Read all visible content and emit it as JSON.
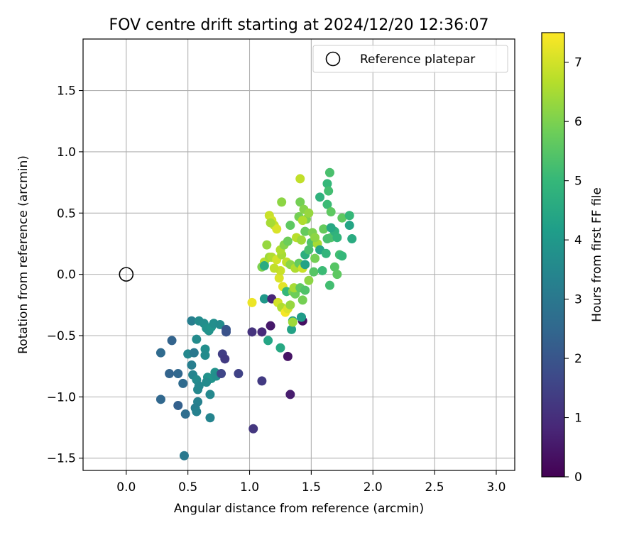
{
  "chart_data": {
    "type": "scatter",
    "title": "FOV centre drift starting at 2024/12/20 12:36:07",
    "xlabel": "Angular distance from reference (arcmin)",
    "ylabel": "Rotation from reference (arcmin)",
    "xlim": [
      -0.35,
      3.15
    ],
    "ylim": [
      -1.6,
      1.92
    ],
    "xticks": [
      0.0,
      0.5,
      1.0,
      1.5,
      2.0,
      2.5,
      3.0
    ],
    "xtick_labels": [
      "0.0",
      "0.5",
      "1.0",
      "1.5",
      "2.0",
      "2.5",
      "3.0"
    ],
    "yticks": [
      -1.5,
      -1.0,
      -0.5,
      0.0,
      0.5,
      1.0,
      1.5
    ],
    "ytick_labels": [
      "−1.5",
      "−1.0",
      "−0.5",
      "0.0",
      "0.5",
      "1.0",
      "1.5"
    ],
    "grid": true,
    "legend": {
      "placement": "top-right",
      "entries": [
        "Reference platepar"
      ]
    },
    "reference_point": {
      "x": 0.0,
      "y": 0.0
    },
    "colorbar": {
      "label": "Hours from first FF file",
      "range": [
        0,
        7.5
      ],
      "ticks": [
        0,
        1,
        2,
        3,
        4,
        5,
        6,
        7
      ],
      "tick_labels": [
        "0",
        "1",
        "2",
        "3",
        "4",
        "5",
        "6",
        "7"
      ],
      "colormap": "viridis",
      "colormap_stops": [
        "#440154",
        "#482878",
        "#3e4989",
        "#31688e",
        "#26828e",
        "#1f9e89",
        "#35b779",
        "#6ece58",
        "#b5de2b",
        "#fde725"
      ]
    },
    "points": [
      {
        "x": 0.47,
        "y": -1.48,
        "t": 3.0
      },
      {
        "x": 0.28,
        "y": -1.02,
        "t": 2.5
      },
      {
        "x": 0.28,
        "y": -0.64,
        "t": 2.6
      },
      {
        "x": 0.37,
        "y": -0.54,
        "t": 2.4
      },
      {
        "x": 0.35,
        "y": -0.81,
        "t": 2.4
      },
      {
        "x": 0.42,
        "y": -0.81,
        "t": 2.5
      },
      {
        "x": 0.46,
        "y": -0.89,
        "t": 2.6
      },
      {
        "x": 0.42,
        "y": -1.07,
        "t": 2.3
      },
      {
        "x": 0.48,
        "y": -1.14,
        "t": 2.7
      },
      {
        "x": 0.53,
        "y": -0.38,
        "t": 3.2
      },
      {
        "x": 0.57,
        "y": -0.53,
        "t": 3.6
      },
      {
        "x": 0.5,
        "y": -0.65,
        "t": 3.5
      },
      {
        "x": 0.55,
        "y": -0.64,
        "t": 3.0
      },
      {
        "x": 0.53,
        "y": -0.74,
        "t": 3.2
      },
      {
        "x": 0.54,
        "y": -0.82,
        "t": 3.4
      },
      {
        "x": 0.57,
        "y": -0.86,
        "t": 3.6
      },
      {
        "x": 0.59,
        "y": -0.91,
        "t": 3.5
      },
      {
        "x": 0.58,
        "y": -0.94,
        "t": 3.5
      },
      {
        "x": 0.58,
        "y": -1.04,
        "t": 3.3
      },
      {
        "x": 0.56,
        "y": -1.09,
        "t": 3.2
      },
      {
        "x": 0.57,
        "y": -1.12,
        "t": 3.3
      },
      {
        "x": 0.59,
        "y": -0.38,
        "t": 3.6
      },
      {
        "x": 0.63,
        "y": -0.4,
        "t": 3.7
      },
      {
        "x": 0.65,
        "y": -0.44,
        "t": 3.8
      },
      {
        "x": 0.67,
        "y": -0.46,
        "t": 3.8
      },
      {
        "x": 0.69,
        "y": -0.43,
        "t": 3.9
      },
      {
        "x": 0.71,
        "y": -0.4,
        "t": 3.7
      },
      {
        "x": 0.76,
        "y": -0.41,
        "t": 3.6
      },
      {
        "x": 0.64,
        "y": -0.61,
        "t": 3.7
      },
      {
        "x": 0.64,
        "y": -0.66,
        "t": 3.6
      },
      {
        "x": 0.66,
        "y": -0.84,
        "t": 3.8
      },
      {
        "x": 0.69,
        "y": -0.85,
        "t": 3.9
      },
      {
        "x": 0.72,
        "y": -0.8,
        "t": 3.8
      },
      {
        "x": 0.73,
        "y": -0.83,
        "t": 3.7
      },
      {
        "x": 0.65,
        "y": -0.88,
        "t": 3.6
      },
      {
        "x": 0.68,
        "y": -0.98,
        "t": 3.5
      },
      {
        "x": 0.68,
        "y": -1.17,
        "t": 3.4
      },
      {
        "x": 0.81,
        "y": -0.45,
        "t": 2.0
      },
      {
        "x": 0.81,
        "y": -0.47,
        "t": 1.9
      },
      {
        "x": 0.78,
        "y": -0.65,
        "t": 1.4
      },
      {
        "x": 0.8,
        "y": -0.69,
        "t": 1.3
      },
      {
        "x": 0.77,
        "y": -0.81,
        "t": 1.6
      },
      {
        "x": 0.91,
        "y": -0.81,
        "t": 1.5
      },
      {
        "x": 1.02,
        "y": -0.47,
        "t": 1.1
      },
      {
        "x": 1.03,
        "y": -1.26,
        "t": 1.2
      },
      {
        "x": 1.1,
        "y": -0.47,
        "t": 0.9
      },
      {
        "x": 1.1,
        "y": -0.87,
        "t": 1.3
      },
      {
        "x": 1.17,
        "y": -0.42,
        "t": 0.5
      },
      {
        "x": 1.31,
        "y": -0.67,
        "t": 0.4
      },
      {
        "x": 1.33,
        "y": -0.98,
        "t": 0.6
      },
      {
        "x": 1.15,
        "y": -0.54,
        "t": 4.4
      },
      {
        "x": 1.25,
        "y": -0.6,
        "t": 4.5
      },
      {
        "x": 1.34,
        "y": -0.45,
        "t": 4.3
      },
      {
        "x": 1.35,
        "y": -0.38,
        "t": 4.2
      },
      {
        "x": 1.43,
        "y": -0.38,
        "t": 0.3
      },
      {
        "x": 1.42,
        "y": -0.35,
        "t": 2.0
      },
      {
        "x": 1.42,
        "y": -0.35,
        "t": 4.1
      },
      {
        "x": 1.12,
        "y": -0.2,
        "t": 4.0
      },
      {
        "x": 1.18,
        "y": -0.2,
        "t": 0.8
      },
      {
        "x": 1.02,
        "y": -0.23,
        "t": 7.3
      },
      {
        "x": 1.23,
        "y": -0.23,
        "t": 7.0
      },
      {
        "x": 1.26,
        "y": -0.27,
        "t": 6.6
      },
      {
        "x": 1.29,
        "y": -0.31,
        "t": 7.4
      },
      {
        "x": 1.31,
        "y": -0.28,
        "t": 7.1
      },
      {
        "x": 1.33,
        "y": -0.25,
        "t": 6.3
      },
      {
        "x": 1.35,
        "y": -0.39,
        "t": 6.4
      },
      {
        "x": 1.27,
        "y": -0.1,
        "t": 7.2
      },
      {
        "x": 1.3,
        "y": -0.14,
        "t": 5.0
      },
      {
        "x": 1.35,
        "y": -0.14,
        "t": 6.0
      },
      {
        "x": 1.37,
        "y": -0.16,
        "t": 5.8
      },
      {
        "x": 1.36,
        "y": -0.11,
        "t": 6.5
      },
      {
        "x": 1.41,
        "y": -0.11,
        "t": 5.6
      },
      {
        "x": 1.43,
        "y": -0.21,
        "t": 5.9
      },
      {
        "x": 1.45,
        "y": -0.13,
        "t": 5.4
      },
      {
        "x": 1.48,
        "y": -0.05,
        "t": 6.2
      },
      {
        "x": 1.52,
        "y": 0.02,
        "t": 5.5
      },
      {
        "x": 1.24,
        "y": -0.03,
        "t": 7.1
      },
      {
        "x": 1.25,
        "y": 0.03,
        "t": 6.9
      },
      {
        "x": 1.2,
        "y": 0.05,
        "t": 6.8
      },
      {
        "x": 1.1,
        "y": 0.06,
        "t": 6.0
      },
      {
        "x": 1.12,
        "y": 0.1,
        "t": 6.7
      },
      {
        "x": 1.16,
        "y": 0.14,
        "t": 6.4
      },
      {
        "x": 1.18,
        "y": 0.14,
        "t": 6.6
      },
      {
        "x": 1.22,
        "y": 0.12,
        "t": 7.0
      },
      {
        "x": 1.26,
        "y": 0.16,
        "t": 6.5
      },
      {
        "x": 1.3,
        "y": 0.1,
        "t": 6.8
      },
      {
        "x": 1.33,
        "y": 0.08,
        "t": 6.2
      },
      {
        "x": 1.37,
        "y": 0.05,
        "t": 6.6
      },
      {
        "x": 1.4,
        "y": 0.09,
        "t": 5.7
      },
      {
        "x": 1.43,
        "y": 0.05,
        "t": 6.9
      },
      {
        "x": 1.45,
        "y": 0.08,
        "t": 4.3
      },
      {
        "x": 1.12,
        "y": 0.07,
        "t": 4.6
      },
      {
        "x": 1.14,
        "y": 0.24,
        "t": 6.3
      },
      {
        "x": 1.25,
        "y": 0.2,
        "t": 6.6
      },
      {
        "x": 1.28,
        "y": 0.24,
        "t": 6.1
      },
      {
        "x": 1.31,
        "y": 0.27,
        "t": 5.8
      },
      {
        "x": 1.38,
        "y": 0.3,
        "t": 6.7
      },
      {
        "x": 1.42,
        "y": 0.28,
        "t": 6.4
      },
      {
        "x": 1.45,
        "y": 0.16,
        "t": 4.7
      },
      {
        "x": 1.48,
        "y": 0.2,
        "t": 5.3
      },
      {
        "x": 1.5,
        "y": 0.26,
        "t": 5.4
      },
      {
        "x": 1.53,
        "y": 0.13,
        "t": 5.9
      },
      {
        "x": 1.55,
        "y": 0.25,
        "t": 6.5
      },
      {
        "x": 1.57,
        "y": 0.2,
        "t": 4.4
      },
      {
        "x": 1.59,
        "y": 0.03,
        "t": 5.1
      },
      {
        "x": 1.62,
        "y": 0.17,
        "t": 4.9
      },
      {
        "x": 1.65,
        "y": -0.09,
        "t": 5.2
      },
      {
        "x": 1.69,
        "y": 0.06,
        "t": 5.5
      },
      {
        "x": 1.71,
        "y": 0.0,
        "t": 5.6
      },
      {
        "x": 1.73,
        "y": 0.16,
        "t": 5.2
      },
      {
        "x": 1.75,
        "y": 0.15,
        "t": 5.0
      },
      {
        "x": 1.66,
        "y": 0.3,
        "t": 5.4
      },
      {
        "x": 1.69,
        "y": 0.35,
        "t": 4.8
      },
      {
        "x": 1.71,
        "y": 0.3,
        "t": 4.9
      },
      {
        "x": 1.6,
        "y": 0.37,
        "t": 5.7
      },
      {
        "x": 1.63,
        "y": 0.29,
        "t": 5.3
      },
      {
        "x": 1.66,
        "y": 0.38,
        "t": 4.5
      },
      {
        "x": 1.75,
        "y": 0.46,
        "t": 5.6
      },
      {
        "x": 1.81,
        "y": 0.48,
        "t": 5.0
      },
      {
        "x": 1.81,
        "y": 0.4,
        "t": 4.4
      },
      {
        "x": 1.83,
        "y": 0.29,
        "t": 4.6
      },
      {
        "x": 1.16,
        "y": 0.48,
        "t": 6.9
      },
      {
        "x": 1.18,
        "y": 0.44,
        "t": 7.0
      },
      {
        "x": 1.2,
        "y": 0.4,
        "t": 6.8
      },
      {
        "x": 1.22,
        "y": 0.37,
        "t": 7.1
      },
      {
        "x": 1.17,
        "y": 0.42,
        "t": 6.5
      },
      {
        "x": 1.26,
        "y": 0.59,
        "t": 6.2
      },
      {
        "x": 1.33,
        "y": 0.4,
        "t": 5.6
      },
      {
        "x": 1.4,
        "y": 0.47,
        "t": 5.9
      },
      {
        "x": 1.41,
        "y": 0.59,
        "t": 5.9
      },
      {
        "x": 1.44,
        "y": 0.53,
        "t": 6.1
      },
      {
        "x": 1.46,
        "y": 0.45,
        "t": 6.0
      },
      {
        "x": 1.48,
        "y": 0.5,
        "t": 6.3
      },
      {
        "x": 1.43,
        "y": 0.44,
        "t": 6.6
      },
      {
        "x": 1.45,
        "y": 0.35,
        "t": 5.7
      },
      {
        "x": 1.51,
        "y": 0.34,
        "t": 6.0
      },
      {
        "x": 1.53,
        "y": 0.3,
        "t": 6.2
      },
      {
        "x": 1.57,
        "y": 0.63,
        "t": 4.8
      },
      {
        "x": 1.63,
        "y": 0.57,
        "t": 5.1
      },
      {
        "x": 1.63,
        "y": 0.74,
        "t": 5.0
      },
      {
        "x": 1.64,
        "y": 0.68,
        "t": 5.2
      },
      {
        "x": 1.65,
        "y": 0.83,
        "t": 5.3
      },
      {
        "x": 1.66,
        "y": 0.51,
        "t": 5.6
      },
      {
        "x": 1.41,
        "y": 0.78,
        "t": 6.8
      }
    ]
  }
}
